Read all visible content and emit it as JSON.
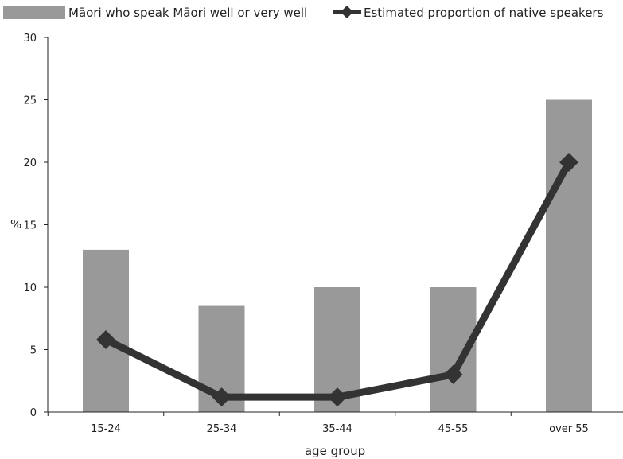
{
  "chart_data": {
    "type": "bar",
    "categories": [
      "15-24",
      "25-34",
      "35-44",
      "45-55",
      "over 55"
    ],
    "series": [
      {
        "name": "Māori who speak Māori well or very well",
        "kind": "bar",
        "values": [
          13,
          8.5,
          10,
          10,
          25
        ],
        "color": "#999999"
      },
      {
        "name": "Estimated proportion of native speakers",
        "kind": "line",
        "marker": "diamond",
        "values": [
          5.8,
          1.2,
          1.2,
          3,
          20
        ],
        "color": "#333333"
      }
    ],
    "title": "",
    "xlabel": "age group",
    "ylabel": "%",
    "ylim": [
      0,
      30
    ],
    "yticks": [
      "0",
      "5",
      "10",
      "15",
      "20",
      "25",
      "30"
    ],
    "grid": false,
    "legend_position": "top"
  }
}
